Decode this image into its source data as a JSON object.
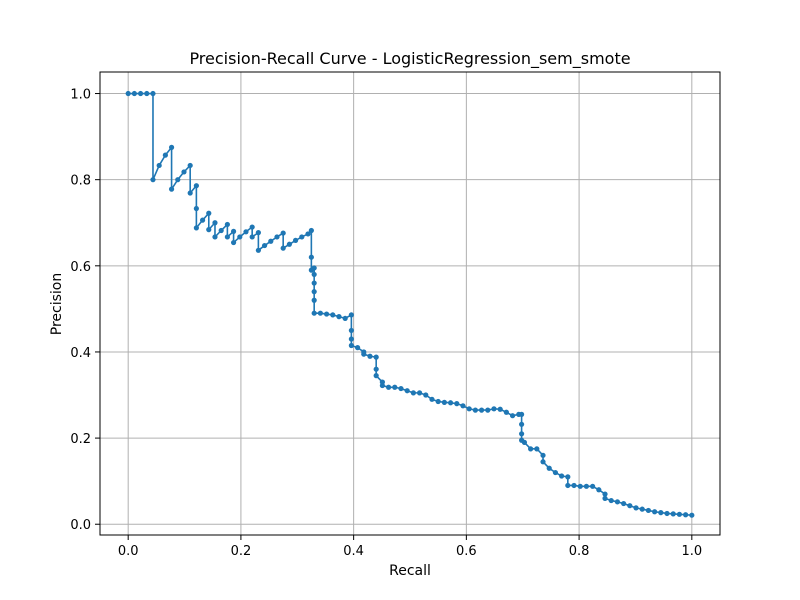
{
  "chart_data": {
    "type": "line",
    "title": "Precision-Recall Curve - LogisticRegression_sem_smote",
    "xlabel": "Recall",
    "ylabel": "Precision",
    "xlim": [
      -0.05,
      1.05
    ],
    "ylim": [
      -0.025,
      1.05
    ],
    "xticks": [
      "0.0",
      "0.2",
      "0.4",
      "0.6",
      "0.8",
      "1.0"
    ],
    "yticks": [
      "0.0",
      "0.2",
      "0.4",
      "0.6",
      "0.8",
      "1.0"
    ],
    "grid": true,
    "line_color": "#1f77b4",
    "marker": "circle",
    "series": [
      {
        "x": [
          0.0,
          0.011,
          0.022,
          0.033,
          0.044,
          0.044,
          0.055,
          0.066,
          0.077,
          0.077,
          0.088,
          0.099,
          0.11,
          0.11,
          0.121,
          0.121,
          0.121,
          0.132,
          0.143,
          0.143,
          0.154,
          0.154,
          0.165,
          0.176,
          0.176,
          0.187,
          0.187,
          0.198,
          0.209,
          0.22,
          0.22,
          0.231,
          0.231,
          0.242,
          0.253,
          0.264,
          0.275,
          0.275,
          0.286,
          0.297,
          0.308,
          0.319,
          0.325,
          0.325,
          0.325,
          0.33,
          0.33,
          0.33,
          0.33,
          0.33,
          0.33,
          0.341,
          0.352,
          0.363,
          0.374,
          0.385,
          0.396,
          0.396,
          0.396,
          0.396,
          0.407,
          0.418,
          0.418,
          0.429,
          0.44,
          0.44,
          0.44,
          0.451,
          0.451,
          0.462,
          0.473,
          0.484,
          0.495,
          0.506,
          0.517,
          0.528,
          0.539,
          0.55,
          0.561,
          0.572,
          0.583,
          0.594,
          0.605,
          0.616,
          0.627,
          0.638,
          0.649,
          0.66,
          0.671,
          0.682,
          0.693,
          0.698,
          0.698,
          0.698,
          0.698,
          0.703,
          0.714,
          0.725,
          0.736,
          0.736,
          0.747,
          0.758,
          0.769,
          0.78,
          0.78,
          0.791,
          0.802,
          0.813,
          0.824,
          0.835,
          0.846,
          0.846,
          0.857,
          0.868,
          0.879,
          0.89,
          0.901,
          0.912,
          0.923,
          0.934,
          0.945,
          0.956,
          0.967,
          0.978,
          0.989,
          1.0
        ],
        "y": [
          1.0,
          1.0,
          1.0,
          1.0,
          1.0,
          0.8,
          0.833,
          0.857,
          0.875,
          0.778,
          0.8,
          0.818,
          0.833,
          0.769,
          0.786,
          0.733,
          0.688,
          0.706,
          0.722,
          0.684,
          0.7,
          0.667,
          0.682,
          0.696,
          0.667,
          0.68,
          0.654,
          0.667,
          0.679,
          0.69,
          0.667,
          0.677,
          0.636,
          0.647,
          0.657,
          0.667,
          0.676,
          0.641,
          0.65,
          0.659,
          0.667,
          0.674,
          0.682,
          0.62,
          0.59,
          0.595,
          0.58,
          0.56,
          0.54,
          0.52,
          0.49,
          0.49,
          0.488,
          0.486,
          0.482,
          0.478,
          0.486,
          0.45,
          0.43,
          0.415,
          0.41,
          0.4,
          0.395,
          0.39,
          0.388,
          0.36,
          0.345,
          0.33,
          0.322,
          0.318,
          0.318,
          0.315,
          0.31,
          0.305,
          0.305,
          0.3,
          0.29,
          0.285,
          0.283,
          0.282,
          0.28,
          0.275,
          0.268,
          0.265,
          0.265,
          0.265,
          0.268,
          0.267,
          0.26,
          0.252,
          0.255,
          0.255,
          0.232,
          0.21,
          0.195,
          0.19,
          0.175,
          0.175,
          0.16,
          0.145,
          0.13,
          0.12,
          0.112,
          0.11,
          0.09,
          0.09,
          0.088,
          0.088,
          0.088,
          0.08,
          0.07,
          0.06,
          0.055,
          0.052,
          0.048,
          0.043,
          0.038,
          0.035,
          0.032,
          0.029,
          0.027,
          0.025,
          0.024,
          0.023,
          0.022,
          0.021
        ]
      }
    ]
  }
}
